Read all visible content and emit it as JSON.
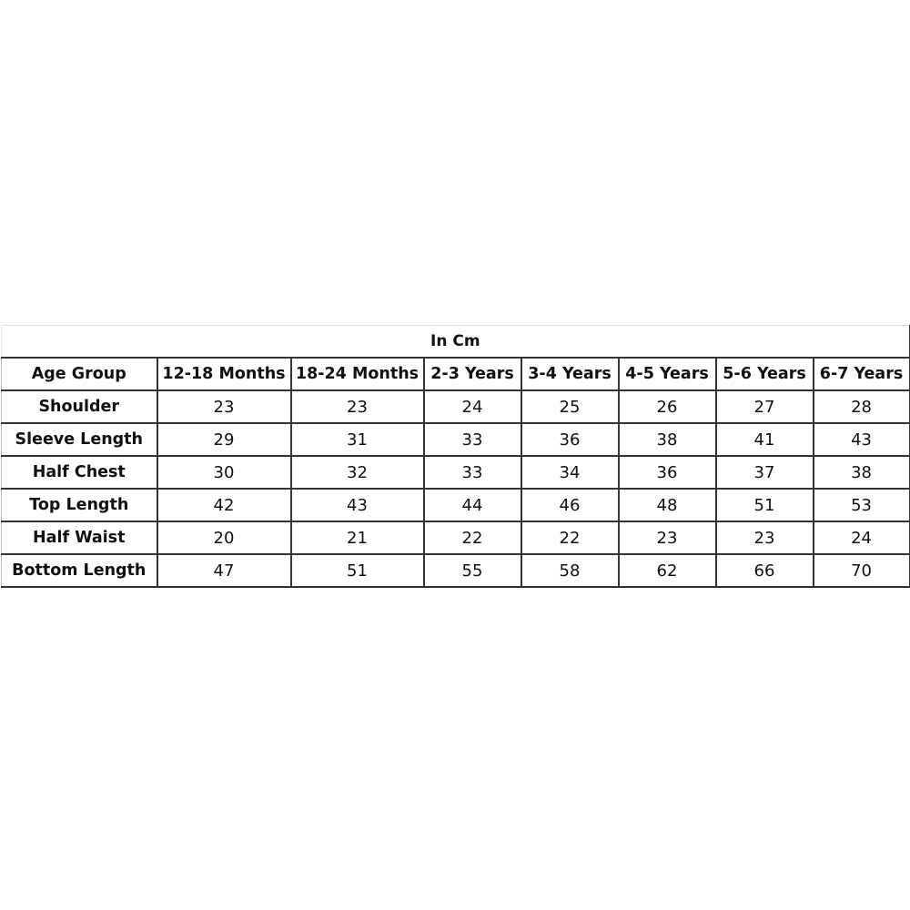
{
  "title": "In Cm",
  "columns": [
    "Age Group",
    "12-18 Months",
    "18-24 Months",
    "2-3 Years",
    "3-4 Years",
    "4-5 Years",
    "5-6 Years",
    "6-7 Years"
  ],
  "rows": [
    {
      "label": "Shoulder",
      "values": [
        "23",
        "23",
        "24",
        "25",
        "26",
        "27",
        "28"
      ]
    },
    {
      "label": "Sleeve Length",
      "values": [
        "29",
        "31",
        "33",
        "36",
        "38",
        "41",
        "43"
      ]
    },
    {
      "label": "Half Chest",
      "values": [
        "30",
        "32",
        "33",
        "34",
        "36",
        "37",
        "38"
      ]
    },
    {
      "label": "Top Length",
      "values": [
        "42",
        "43",
        "44",
        "46",
        "48",
        "51",
        "53"
      ]
    },
    {
      "label": "Half Waist",
      "values": [
        "20",
        "21",
        "22",
        "22",
        "23",
        "23",
        "24"
      ]
    },
    {
      "label": "Bottom Length",
      "values": [
        "47",
        "51",
        "55",
        "58",
        "62",
        "66",
        "70"
      ]
    }
  ]
}
